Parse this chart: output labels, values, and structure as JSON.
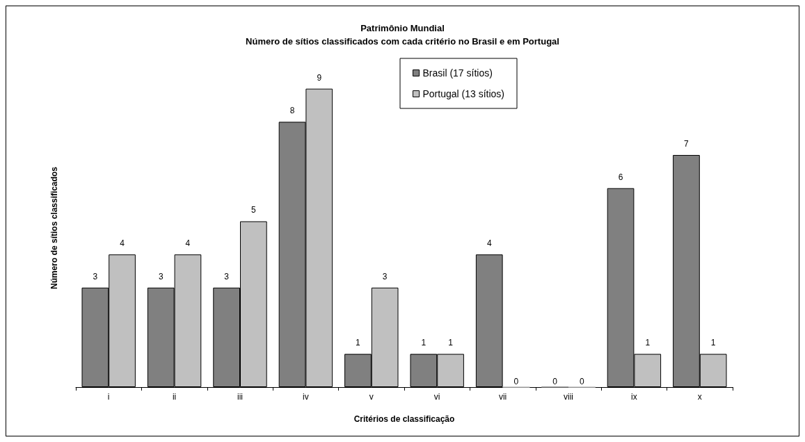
{
  "chart_data": {
    "type": "bar",
    "title": "Patrimônio Mundial",
    "subtitle": "Número de sítios classificados com cada critério no Brasil e em Portugal",
    "xlabel": "Critérios de classificação",
    "ylabel": "Número de sítios classificados",
    "categories": [
      "i",
      "ii",
      "iii",
      "iv",
      "v",
      "vi",
      "vii",
      "viii",
      "ix",
      "x"
    ],
    "series": [
      {
        "name": "Brasil (17 sítios)",
        "color": "#808080",
        "values": [
          3,
          3,
          3,
          8,
          1,
          1,
          4,
          0,
          6,
          7
        ]
      },
      {
        "name": "Portugal (13 sítios)",
        "color": "#c0c0c0",
        "values": [
          4,
          4,
          5,
          9,
          3,
          1,
          0,
          0,
          1,
          1
        ]
      }
    ],
    "data_labels": true,
    "grid": false,
    "legend": "top"
  }
}
